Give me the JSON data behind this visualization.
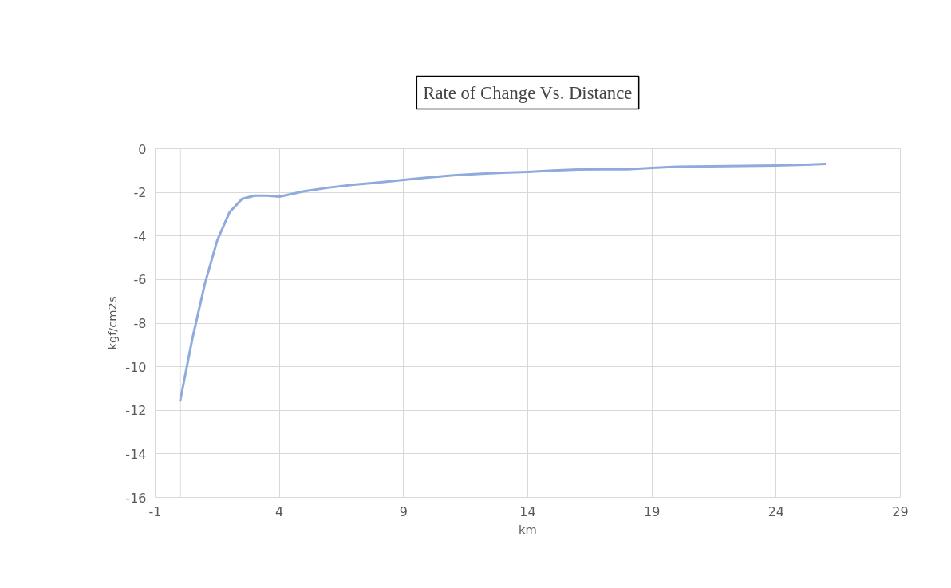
{
  "chart_data": {
    "type": "line",
    "title": "Rate of Change Vs. Distance",
    "xlabel": "km",
    "ylabel": "kgf/cm2s",
    "x": [
      0,
      0.5,
      1,
      1.5,
      2,
      2.5,
      3,
      3.5,
      4,
      5,
      6,
      7,
      8,
      9,
      10,
      11,
      12,
      13,
      14,
      15,
      16,
      17,
      18,
      19,
      20,
      22,
      24,
      26
    ],
    "series": [
      {
        "color": "#8faadc",
        "values": [
          -11.6,
          -8.7,
          -6.2,
          -4.2,
          -2.9,
          -2.3,
          -2.15,
          -2.15,
          -2.2,
          -1.95,
          -1.78,
          -1.65,
          -1.55,
          -1.43,
          -1.32,
          -1.22,
          -1.15,
          -1.1,
          -1.06,
          -1.0,
          -0.95,
          -0.94,
          -0.94,
          -0.88,
          -0.82,
          -0.8,
          -0.77,
          -0.7
        ]
      }
    ],
    "xlim": [
      -1,
      29
    ],
    "xticks": [
      -1,
      4,
      9,
      14,
      19,
      24,
      29
    ],
    "ylim": [
      -16,
      0
    ],
    "yticks": [
      0,
      -2,
      -4,
      -6,
      -8,
      -10,
      -12,
      -14,
      -16
    ],
    "grid": true,
    "marker": "none",
    "line_style": "solid"
  }
}
